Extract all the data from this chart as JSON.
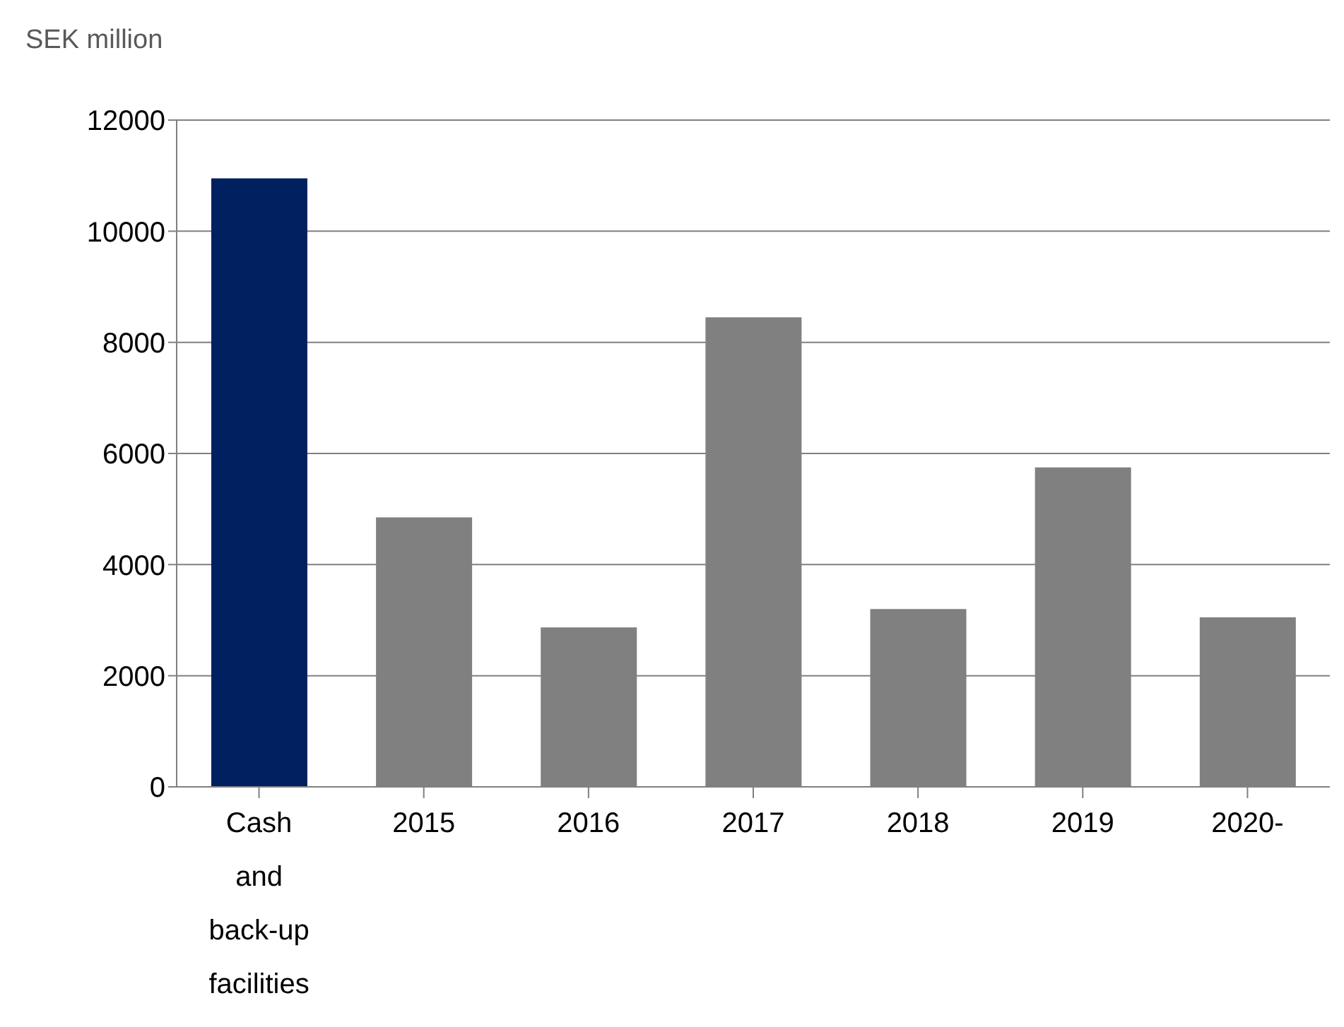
{
  "chart_data": {
    "type": "bar",
    "ylabel": "SEK million",
    "categories": [
      "Cash and back-up facilities",
      "2015",
      "2016",
      "2017",
      "2018",
      "2019",
      "2020-"
    ],
    "values": [
      10950,
      4850,
      2870,
      8450,
      3200,
      5750,
      3050
    ],
    "colors": [
      "#002060",
      "#808080",
      "#808080",
      "#808080",
      "#808080",
      "#808080",
      "#808080"
    ],
    "ylim": [
      0,
      12000
    ],
    "yticks": [
      0,
      2000,
      4000,
      6000,
      8000,
      10000,
      12000
    ],
    "grid": "y"
  }
}
